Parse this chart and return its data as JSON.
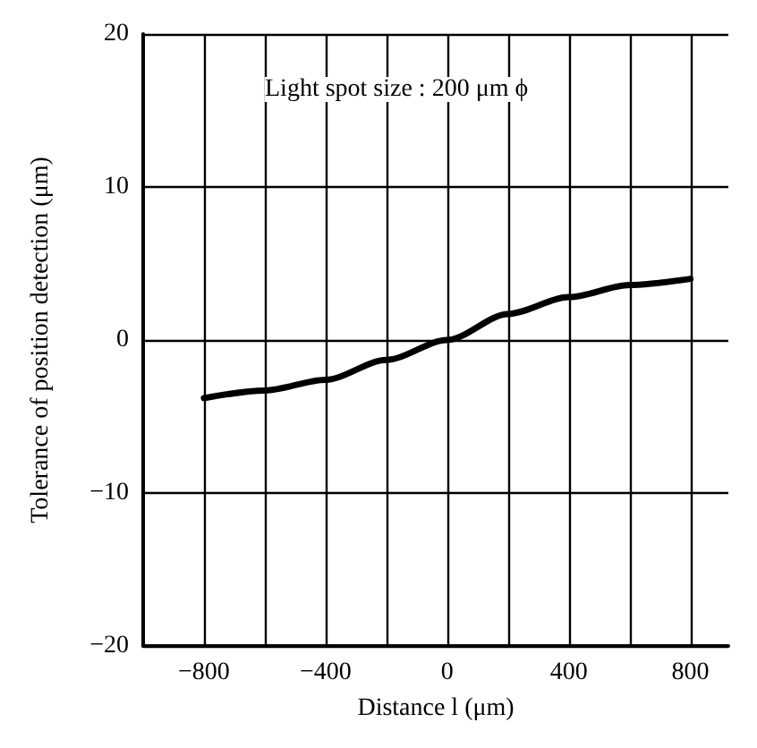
{
  "chart_data": {
    "type": "line",
    "xlabel": "Distance l (μm)",
    "ylabel": "Tolerance of position detection (μm)",
    "annotations": [
      "Light spot size : 200 μm ϕ"
    ],
    "x": [
      -800,
      -600,
      -400,
      -200,
      0,
      200,
      400,
      600,
      800
    ],
    "series": [
      {
        "color": "#000000",
        "values": [
          -3.8,
          -3.3,
          -2.6,
          -1.3,
          0,
          1.7,
          2.8,
          3.6,
          4.0
        ]
      }
    ],
    "xlim": [
      -1000,
      925
    ],
    "xticks": [
      -800,
      {
        "value": -600,
        "label": null
      },
      -400,
      {
        "value": -200,
        "label": null
      },
      0,
      {
        "value": 200,
        "label": null
      },
      400,
      {
        "value": 600,
        "label": null
      },
      800
    ],
    "ylim": [
      -20,
      20
    ],
    "yticks": [
      -20,
      -10,
      0,
      10,
      20
    ],
    "grid": true,
    "marker": "none",
    "line_style": "solid"
  }
}
